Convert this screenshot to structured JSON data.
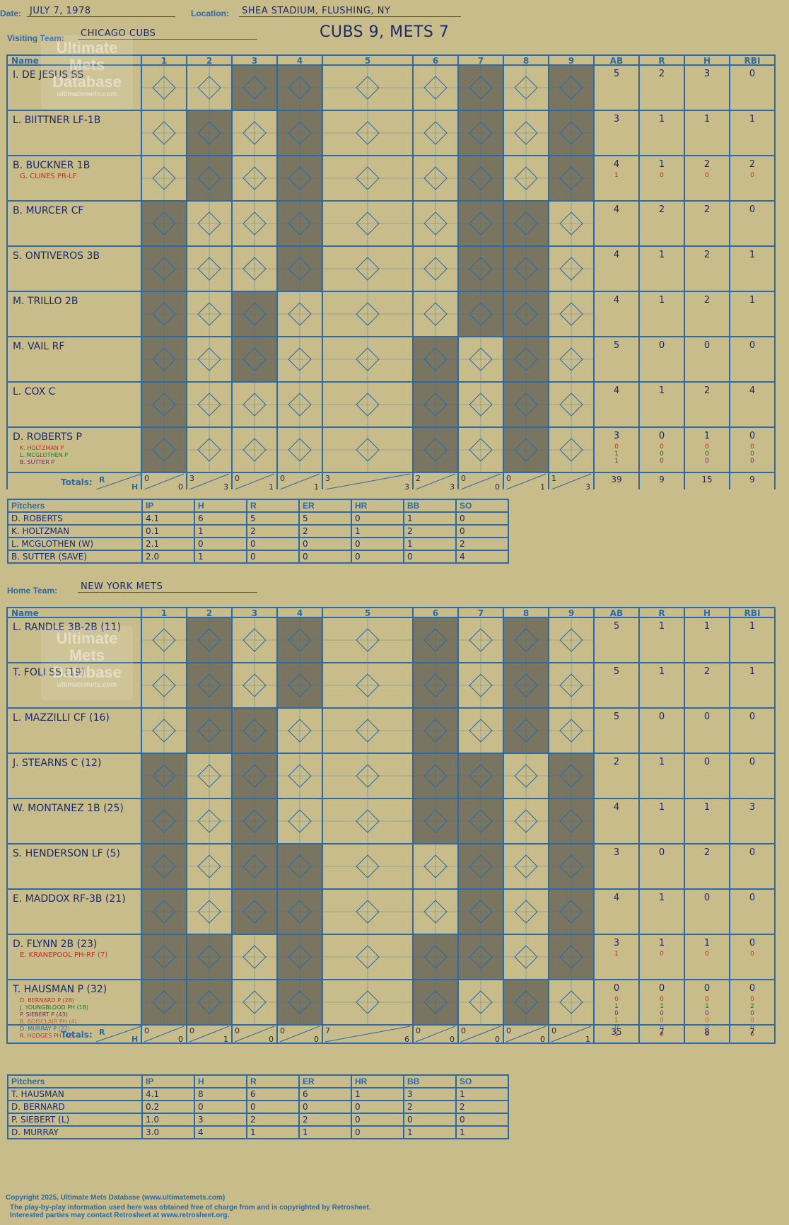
{
  "header": {
    "date_label": "Date:",
    "date": "JULY 7, 1978",
    "location_label": "Location:",
    "location": "SHEA STADIUM, FLUSHING, NY",
    "visiting_label": "Visiting Team:",
    "visiting_team": "CHICAGO CUBS",
    "result": "CUBS 9, METS 7",
    "home_label": "Home Team:",
    "home_team": "NEW YORK METS"
  },
  "watermark": {
    "line1": "Ultimate",
    "line2": "Mets",
    "line3": "Database",
    "url": "ultimatemets.com"
  },
  "grid_headers": [
    "Name",
    "1",
    "2",
    "3",
    "4",
    "5",
    "6",
    "7",
    "8",
    "9",
    "AB",
    "R",
    "H",
    "RBI"
  ],
  "totals_label": "Totals:",
  "rh_r": "R",
  "rh_h": "H",
  "visitors": {
    "batters": [
      {
        "name": "I. DE JESUS SS",
        "subs": [],
        "stats": [
          [
            "5"
          ],
          [
            "2"
          ],
          [
            "3"
          ],
          [
            "0"
          ]
        ]
      },
      {
        "name": "L. BIITTNER LF-1B",
        "subs": [],
        "stats": [
          [
            "3"
          ],
          [
            "1"
          ],
          [
            "1"
          ],
          [
            "1"
          ]
        ]
      },
      {
        "name": "B. BUCKNER 1B",
        "subs": [
          {
            "t": "G. CLINES PR-LF",
            "c": "#c0302a"
          }
        ],
        "stats": [
          [
            "4",
            "1"
          ],
          [
            "1",
            "0"
          ],
          [
            "2",
            "0"
          ],
          [
            "2",
            "0"
          ]
        ]
      },
      {
        "name": "B. MURCER CF",
        "subs": [],
        "stats": [
          [
            "4"
          ],
          [
            "2"
          ],
          [
            "2"
          ],
          [
            "0"
          ]
        ]
      },
      {
        "name": "S. ONTIVEROS 3B",
        "subs": [],
        "stats": [
          [
            "4"
          ],
          [
            "1"
          ],
          [
            "2"
          ],
          [
            "1"
          ]
        ]
      },
      {
        "name": "M. TRILLO 2B",
        "subs": [],
        "stats": [
          [
            "4"
          ],
          [
            "1"
          ],
          [
            "2"
          ],
          [
            "1"
          ]
        ]
      },
      {
        "name": "M. VAIL RF",
        "subs": [],
        "stats": [
          [
            "5"
          ],
          [
            "0"
          ],
          [
            "0"
          ],
          [
            "0"
          ]
        ]
      },
      {
        "name": "L. COX C",
        "subs": [],
        "stats": [
          [
            "4"
          ],
          [
            "1"
          ],
          [
            "2"
          ],
          [
            "4"
          ]
        ]
      },
      {
        "name": "D. ROBERTS P",
        "subs": [
          {
            "t": "K. HOLTZMAN P",
            "c": "#c0302a"
          },
          {
            "t": "L. MCGLOTHEN P",
            "c": "#1a7a2a"
          },
          {
            "t": "B. SUTTER P",
            "c": "#7a2a6a"
          }
        ],
        "stats": [
          [
            "3",
            "0",
            "1",
            "1"
          ],
          [
            "0",
            "0",
            "0",
            "0"
          ],
          [
            "1",
            "0",
            "0",
            "0"
          ],
          [
            "0",
            "0",
            "0",
            "0"
          ]
        ]
      }
    ],
    "totals": [
      [
        "0",
        "0"
      ],
      [
        "3",
        "3"
      ],
      [
        "0",
        "1"
      ],
      [
        "0",
        "1"
      ],
      [
        "3",
        "3"
      ],
      [
        "2",
        "3"
      ],
      [
        "0",
        "0"
      ],
      [
        "0",
        "1"
      ],
      [
        "1",
        "3"
      ]
    ],
    "totals_stats": [
      "39",
      "9",
      "15",
      "9"
    ]
  },
  "visitors_pitching": {
    "headers": [
      "Pitchers",
      "IP",
      "H",
      "R",
      "ER",
      "HR",
      "BB",
      "SO"
    ],
    "rows": [
      [
        "D. ROBERTS",
        "4.1",
        "6",
        "5",
        "5",
        "0",
        "1",
        "0"
      ],
      [
        "K. HOLTZMAN",
        "0.1",
        "1",
        "2",
        "2",
        "1",
        "2",
        "0"
      ],
      [
        "L. MCGLOTHEN (W)",
        "2.1",
        "0",
        "0",
        "0",
        "0",
        "1",
        "2"
      ],
      [
        "B. SUTTER (SAVE)",
        "2.0",
        "1",
        "0",
        "0",
        "0",
        "0",
        "4"
      ]
    ]
  },
  "home": {
    "batters": [
      {
        "name": "L. RANDLE 3B-2B (11)",
        "subs": [],
        "stats": [
          [
            "5"
          ],
          [
            "1"
          ],
          [
            "1"
          ],
          [
            "1"
          ]
        ]
      },
      {
        "name": "T. FOLI SS (19)",
        "subs": [],
        "stats": [
          [
            "5"
          ],
          [
            "1"
          ],
          [
            "2"
          ],
          [
            "1"
          ]
        ]
      },
      {
        "name": "L. MAZZILLI CF (16)",
        "subs": [],
        "stats": [
          [
            "5"
          ],
          [
            "0"
          ],
          [
            "0"
          ],
          [
            "0"
          ]
        ]
      },
      {
        "name": "J. STEARNS C (12)",
        "subs": [],
        "stats": [
          [
            "2"
          ],
          [
            "1"
          ],
          [
            "0"
          ],
          [
            "0"
          ]
        ]
      },
      {
        "name": "W. MONTANEZ 1B (25)",
        "subs": [],
        "stats": [
          [
            "4"
          ],
          [
            "1"
          ],
          [
            "1"
          ],
          [
            "3"
          ]
        ]
      },
      {
        "name": "S. HENDERSON LF (5)",
        "subs": [],
        "stats": [
          [
            "3"
          ],
          [
            "0"
          ],
          [
            "2"
          ],
          [
            "0"
          ]
        ]
      },
      {
        "name": "E. MADDOX RF-3B (21)",
        "subs": [],
        "stats": [
          [
            "4"
          ],
          [
            "1"
          ],
          [
            "0"
          ],
          [
            "0"
          ]
        ]
      },
      {
        "name": "D. FLYNN 2B (23)",
        "subs": [
          {
            "t": "E. KRANEPOOL PH-RF (7)",
            "c": "#c0302a"
          }
        ],
        "stats": [
          [
            "3",
            "1"
          ],
          [
            "1",
            "0"
          ],
          [
            "1",
            "0"
          ],
          [
            "0",
            "0"
          ]
        ]
      },
      {
        "name": "T. HAUSMAN P (32)",
        "subs": [
          {
            "t": "D. BERNARD P (28)",
            "c": "#c0302a"
          },
          {
            "t": "J. YOUNGBLOOD PH (18)",
            "c": "#1a7a2a"
          },
          {
            "t": "P. SIEBERT P (43)",
            "c": "#7a2a6a"
          },
          {
            "t": "B. BOISCLAIR PH (4)",
            "c": "#c06a2a"
          },
          {
            "t": "D. MURRAY P (22)",
            "c": "#2a6aaa"
          },
          {
            "t": "R. HODGES PH (42)",
            "c": "#c0302a"
          }
        ],
        "stats": [
          [
            "0",
            "0",
            "1",
            "0",
            "1",
            "0",
            "1"
          ],
          [
            "0",
            "0",
            "1",
            "0",
            "0",
            "0",
            "0"
          ],
          [
            "0",
            "0",
            "1",
            "0",
            "0",
            "0",
            "0"
          ],
          [
            "0",
            "0",
            "2",
            "0",
            "0",
            "0",
            "0"
          ]
        ]
      }
    ],
    "totals": [
      [
        "0",
        "0"
      ],
      [
        "0",
        "1"
      ],
      [
        "0",
        "0"
      ],
      [
        "0",
        "0"
      ],
      [
        "7",
        "6"
      ],
      [
        "0",
        "0"
      ],
      [
        "0",
        "0"
      ],
      [
        "0",
        "0"
      ],
      [
        "0",
        "1"
      ]
    ],
    "totals_stats": [
      "35",
      "7",
      "8",
      "7"
    ]
  },
  "home_pitching": {
    "headers": [
      "Pitchers",
      "IP",
      "H",
      "R",
      "ER",
      "HR",
      "BB",
      "SO"
    ],
    "rows": [
      [
        "T. HAUSMAN",
        "4.1",
        "8",
        "6",
        "6",
        "1",
        "3",
        "1"
      ],
      [
        "D. BERNARD",
        "0.2",
        "0",
        "0",
        "0",
        "0",
        "2",
        "2"
      ],
      [
        "P. SIEBERT (L)",
        "1.0",
        "3",
        "2",
        "2",
        "0",
        "0",
        "0"
      ],
      [
        "D. MURRAY",
        "3.0",
        "4",
        "1",
        "1",
        "0",
        "1",
        "1"
      ]
    ]
  },
  "footer": {
    "line1": "Copyright 2025, Ultimate Mets Database (www.ultimatemets.com)",
    "line2": "The play-by-play information used here was obtained free of charge from and is copyrighted by Retrosheet.",
    "line3": "Interested parties may contact Retrosheet at www.retrosheet.org."
  },
  "colors": {
    "background": "#c8bc8a",
    "grid_blue": "#2a6aaa",
    "ink": "#1a2a6c",
    "shade": "#7a7560",
    "red_note": "#e83030"
  }
}
